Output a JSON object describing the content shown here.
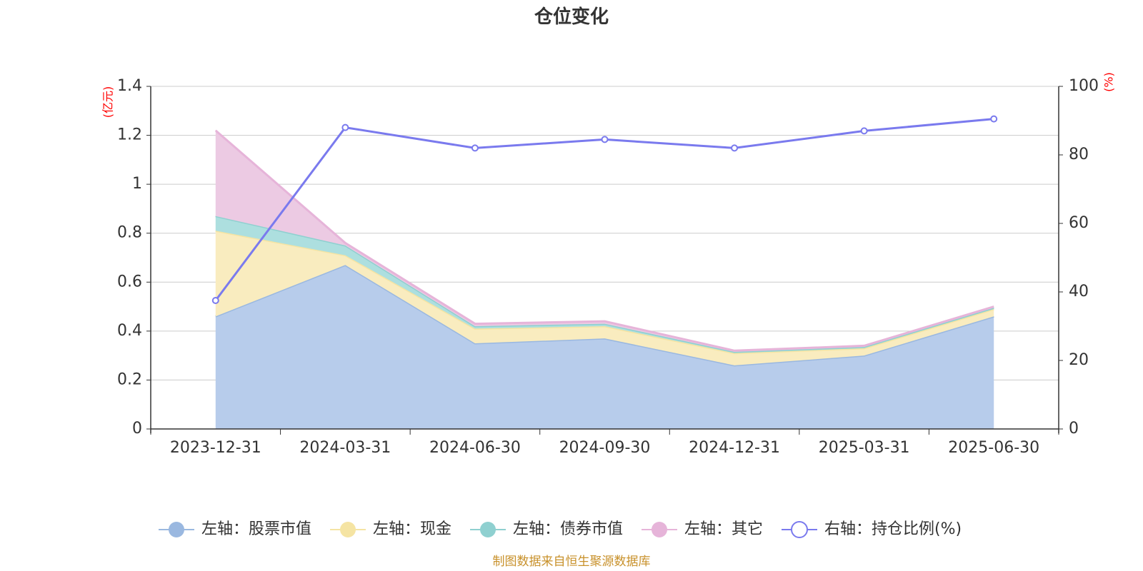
{
  "chart_data": {
    "type": "area",
    "title": "仓位变化",
    "left_axis_unit": "(亿元)",
    "right_axis_unit": "(%)",
    "categories": [
      "2023-12-31",
      "2024-03-31",
      "2024-06-30",
      "2024-09-30",
      "2024-12-31",
      "2025-03-31",
      "2025-06-30"
    ],
    "left_ylim": [
      0,
      1.4
    ],
    "left_yticks": [
      "0",
      "0.2",
      "0.4",
      "0.6",
      "0.8",
      "1",
      "1.2",
      "1.4"
    ],
    "right_ylim": [
      0,
      100
    ],
    "right_yticks": [
      "0",
      "20",
      "40",
      "60",
      "80",
      "100"
    ],
    "grid": true,
    "legend_position": "bottom",
    "stacked_series": [
      {
        "name": "左轴：股票市值",
        "color": "#9ab8e0",
        "fill": "#b7cceb",
        "values": [
          0.46,
          0.67,
          0.35,
          0.37,
          0.26,
          0.3,
          0.46
        ]
      },
      {
        "name": "左轴：现金",
        "color": "#f5e4a3",
        "fill": "#f9ecbf",
        "values": [
          0.35,
          0.04,
          0.06,
          0.05,
          0.05,
          0.03,
          0.03
        ]
      },
      {
        "name": "左轴：债券市值",
        "color": "#8fd0d0",
        "fill": "#addfdf",
        "values": [
          0.06,
          0.04,
          0.01,
          0.01,
          0.005,
          0.005,
          0.005
        ]
      },
      {
        "name": "左轴：其它",
        "color": "#e6b4d9",
        "fill": "#eccae3",
        "values": [
          0.35,
          0.01,
          0.01,
          0.01,
          0.005,
          0.005,
          0.005
        ]
      }
    ],
    "line_series": {
      "name": "右轴：持仓比例(%)",
      "color": "#7a7aee",
      "values": [
        37.5,
        88,
        82,
        84.5,
        82,
        87,
        90.5
      ]
    },
    "source_note": "制图数据来自恒生聚源数据库"
  }
}
